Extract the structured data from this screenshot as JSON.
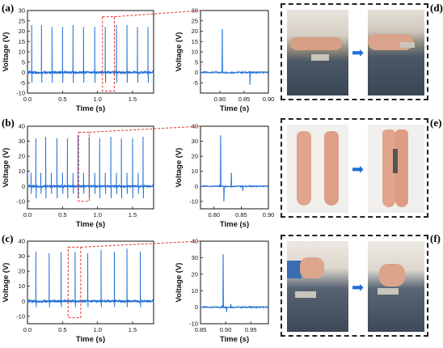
{
  "colors": {
    "trace": "#1f6fd6",
    "zoom": "#e0342c",
    "arrow": "#1f6fd6"
  },
  "panel_labels": {
    "a": "(a)",
    "b": "(b)",
    "c": "(c)",
    "d": "(d)",
    "e": "(e)",
    "f": "(f)"
  },
  "photo_captions": {
    "d": [
      "finger resting on sensor",
      "finger pressing sensor"
    ],
    "e": [
      "hands apart",
      "hands clapping on sensor"
    ],
    "f": [
      "fist above knee sensor",
      "fist striking knee sensor"
    ]
  },
  "chart_data": [
    {
      "id": "a_full",
      "type": "line",
      "xlabel": "Time (s)",
      "ylabel": "Voltage (V)",
      "xlim": [
        0,
        1.8
      ],
      "ylim": [
        -10,
        30
      ],
      "xticks": [
        "0.0",
        "0.5",
        "1.0",
        "1.5"
      ],
      "yticks": [
        "-10",
        "-5",
        "0",
        "5",
        "10",
        "15",
        "20",
        "25",
        "30"
      ],
      "peak_times": [
        0.06,
        0.2,
        0.35,
        0.5,
        0.65,
        0.8,
        0.96,
        1.11,
        1.27,
        1.42,
        1.57,
        1.72
      ],
      "peak_heights": [
        23,
        23,
        22,
        22,
        23,
        22,
        22,
        22,
        23,
        23,
        22,
        22
      ],
      "baseline": 0,
      "neg_dip": -5
    },
    {
      "id": "a_zoom",
      "type": "line",
      "xlabel": "Time (s)",
      "ylabel": "Voltage (V)",
      "xlim": [
        0.76,
        0.9
      ],
      "ylim": [
        -10,
        30
      ],
      "xticks": [
        "0.80",
        "0.85",
        "0.90"
      ],
      "yticks": [
        "-5",
        "0",
        "5",
        "10",
        "15",
        "20",
        "25",
        "30"
      ],
      "peak_time": 0.805,
      "peak_height": 21,
      "dip_time": 0.862,
      "dip_value": -6
    },
    {
      "id": "b_full",
      "type": "line",
      "xlabel": "Time (s)",
      "ylabel": "Voltage (V)",
      "xlim": [
        0,
        1.8
      ],
      "ylim": [
        -15,
        40
      ],
      "xticks": [
        "0.0",
        "0.5",
        "1.0",
        "1.5"
      ],
      "yticks": [
        "-10",
        "0",
        "10",
        "20",
        "30",
        "40"
      ],
      "peak_times": [
        0.12,
        0.26,
        0.42,
        0.57,
        0.72,
        0.88,
        1.03,
        1.19,
        1.34,
        1.5,
        1.65
      ],
      "peak_heights": [
        32,
        33,
        32,
        32,
        34,
        33,
        32,
        33,
        32,
        32,
        33
      ],
      "baseline": 0,
      "neg_dip": -8,
      "small_spikes": [
        0.05,
        0.19,
        0.34,
        0.5,
        0.65,
        0.8,
        0.96,
        1.11,
        1.27,
        1.42,
        1.58
      ]
    },
    {
      "id": "b_zoom",
      "type": "line",
      "xlabel": "Time (s)",
      "ylabel": "Voltage (V)",
      "xlim": [
        0.775,
        0.9
      ],
      "ylim": [
        -15,
        40
      ],
      "xticks": [
        "0.80",
        "0.85",
        "0.90"
      ],
      "yticks": [
        "-10",
        "0",
        "10",
        "20",
        "30",
        "40"
      ],
      "peak_time": 0.812,
      "peak_height": 34,
      "dip_time": 0.818,
      "dip_value": -10,
      "bump_time": 0.832,
      "bump_value": 9,
      "dip2_time": 0.853,
      "dip2_value": -3
    },
    {
      "id": "c_full",
      "type": "line",
      "xlabel": "Time (s)",
      "ylabel": "Voltage (V)",
      "xlim": [
        0,
        1.8
      ],
      "ylim": [
        -15,
        40
      ],
      "xticks": [
        "0.0",
        "0.5",
        "1.0",
        "1.5"
      ],
      "yticks": [
        "-10",
        "0",
        "10",
        "20",
        "30",
        "40"
      ],
      "peak_times": [
        0.12,
        0.31,
        0.48,
        0.68,
        0.86,
        1.05,
        1.24,
        1.42,
        1.61
      ],
      "peak_heights": [
        33,
        32,
        33,
        33,
        32,
        34,
        33,
        35,
        33
      ],
      "baseline": 0,
      "neg_dip": -4
    },
    {
      "id": "c_zoom",
      "type": "line",
      "xlabel": "Time (s)",
      "ylabel": "Voltage (V)",
      "xlim": [
        0.85,
        0.985
      ],
      "ylim": [
        -10,
        40
      ],
      "xticks": [
        "0.85",
        "0.90",
        "0.95"
      ],
      "yticks": [
        "-10",
        "0",
        "10",
        "20",
        "30",
        "40"
      ],
      "peak_time": 0.895,
      "peak_height": 32,
      "dip_time": 0.902,
      "dip_value": -3,
      "bump_time": 0.91,
      "bump_value": 2
    }
  ]
}
